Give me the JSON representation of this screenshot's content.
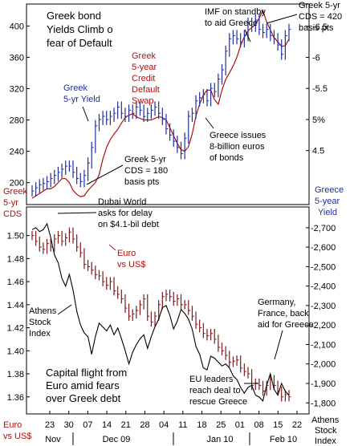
{
  "chart_data": [
    {
      "type": "line",
      "title": "Greek bond Yields Climb on fear of Default",
      "left_axis_label": [
        "Greek",
        "5-yr",
        "CDS"
      ],
      "right_axis_label": [
        "Greece",
        "5-year",
        "Yield"
      ],
      "left_ticks": [
        200,
        240,
        280,
        320,
        360,
        400
      ],
      "right_ticks": [
        "4.5",
        "5%",
        "5.5",
        "6",
        "6.5"
      ],
      "right_tick_values": [
        4.5,
        5,
        5.5,
        6,
        6.5
      ],
      "ylim_left": [
        175,
        425
      ],
      "ylim_right": [
        3.67,
        6.82
      ],
      "series": [
        {
          "name": "Greek 5-year Credit Default Swap",
          "color": "#b01010",
          "axis": "left",
          "values": [
            180,
            183,
            186,
            189,
            192,
            192,
            195,
            200,
            205,
            205,
            200,
            190,
            185,
            182,
            183,
            190,
            195,
            200,
            210,
            230,
            245,
            255,
            262,
            268,
            276,
            283,
            286,
            288,
            284,
            282,
            280,
            280,
            280,
            282,
            284,
            283,
            280,
            270,
            260,
            250,
            242,
            240,
            246,
            262,
            285,
            300,
            312,
            318,
            318,
            306,
            300,
            318,
            332,
            340,
            349,
            360,
            375,
            386,
            394,
            398,
            402,
            410,
            420,
            405,
            395,
            385,
            380,
            374,
            375,
            383
          ]
        },
        {
          "name": "Greek 5-yr Yield",
          "color": "#1f2f9a",
          "axis": "right",
          "values": [
            3.85,
            3.9,
            3.95,
            3.97,
            4.0,
            4.05,
            4.1,
            4.15,
            4.2,
            4.25,
            4.25,
            4.15,
            4.05,
            4.0,
            4.1,
            4.3,
            4.55,
            4.9,
            5.0,
            5.05,
            5.0,
            5.05,
            5.1,
            5.2,
            5.1,
            5.05,
            5.15,
            5.1,
            5.2,
            5.15,
            5.05,
            5.1,
            5.15,
            5.2,
            5.1,
            5.0,
            4.85,
            4.75,
            4.65,
            4.55,
            4.45,
            4.7,
            5.05,
            5.1,
            5.3,
            5.35,
            5.4,
            5.3,
            5.5,
            5.45,
            5.65,
            5.8,
            6.1,
            6.3,
            6.35,
            6.3,
            6.25,
            6.35,
            6.55,
            6.5,
            6.6,
            6.45,
            6.4,
            6.45,
            6.35,
            6.3,
            6.2,
            6.05,
            6.35,
            6.45
          ]
        }
      ]
    },
    {
      "type": "line",
      "left_axis_label": [
        "Euro",
        "vs US$"
      ],
      "right_axis_label": [
        "Athens",
        "Stock",
        "Index"
      ],
      "left_ticks": [
        "1.36",
        "1.38",
        "1.40",
        "1.42",
        "1.44",
        "1.46",
        "1.48",
        "1.50"
      ],
      "left_tick_values": [
        1.36,
        1.38,
        1.4,
        1.42,
        1.44,
        1.46,
        1.48,
        1.5
      ],
      "right_ticks": [
        "-1,800",
        "-1,900",
        "-2,000",
        "-2,100",
        "-2,200",
        "-2,300",
        "-2,400",
        "-2,500",
        "-2,600",
        "-2,700"
      ],
      "right_tick_values": [
        1800,
        1900,
        2000,
        2100,
        2200,
        2300,
        2400,
        2500,
        2600,
        2700
      ],
      "ylim_left": [
        1.348,
        1.522
      ],
      "ylim_right": [
        1760,
        2790
      ],
      "series": [
        {
          "name": "Euro vs US$",
          "color": "#7a1a1a",
          "axis": "left",
          "values": [
            1.5,
            1.495,
            1.49,
            1.488,
            1.493,
            1.49,
            1.497,
            1.5,
            1.495,
            1.498,
            1.503,
            1.497,
            1.49,
            1.485,
            1.475,
            1.473,
            1.47,
            1.466,
            1.465,
            1.46,
            1.457,
            1.46,
            1.452,
            1.449,
            1.445,
            1.437,
            1.43,
            1.432,
            1.435,
            1.44,
            1.445,
            1.43,
            1.425,
            1.43,
            1.44,
            1.447,
            1.449,
            1.447,
            1.443,
            1.445,
            1.44,
            1.44,
            1.435,
            1.43,
            1.423,
            1.42,
            1.415,
            1.413,
            1.415,
            1.41,
            1.403,
            1.4,
            1.396,
            1.39,
            1.391,
            1.392,
            1.385,
            1.382,
            1.38,
            1.37,
            1.372,
            1.37,
            1.365,
            1.37,
            1.375,
            1.37,
            1.365,
            1.36,
            1.362,
            1.36
          ]
        },
        {
          "name": "Athens Stock Index",
          "color": "#000000",
          "axis": "right",
          "values": [
            2690,
            2700,
            2680,
            2690,
            2720,
            2650,
            2560,
            2520,
            2440,
            2400,
            2460,
            2380,
            2270,
            2200,
            2160,
            2140,
            2050,
            2140,
            2210,
            2190,
            2170,
            2200,
            2150,
            2185,
            2130,
            2070,
            2000,
            2060,
            2100,
            2130,
            2150,
            2080,
            2140,
            2190,
            2230,
            2290,
            2300,
            2250,
            2180,
            2220,
            2280,
            2260,
            2230,
            2180,
            2090,
            2050,
            1980,
            1970,
            2040,
            2030,
            2010,
            1990,
            2000,
            1980,
            1940,
            1920,
            1880,
            1850,
            1880,
            1890,
            1840,
            1830,
            1810,
            1890,
            1950,
            1870,
            1840,
            1900,
            1860,
            1840
          ]
        }
      ]
    }
  ],
  "x_axis": {
    "day_ticks": [
      "23",
      "30",
      "07",
      "14",
      "21",
      "28",
      "04",
      "11",
      "18",
      "25",
      "01",
      "08",
      "15",
      "22"
    ],
    "months": [
      "Nov",
      "Dec 09",
      "Jan 10",
      "Feb 10"
    ]
  },
  "annotations": {
    "imf": [
      "IMF on standby",
      "to aid Greece"
    ],
    "cds_peak": [
      "Greek 5-yr",
      "CDS = 420",
      "basis pts"
    ],
    "cds_label": [
      "Greek",
      "5-year",
      "Credit",
      "Default",
      "Swap"
    ],
    "yield_label": [
      "Greek",
      "5-yr Yield"
    ],
    "bonds": [
      "Greece issues",
      "8-billion euros",
      "of bonds"
    ],
    "cds_180": [
      "Greek 5-yr",
      "CDS = 180",
      "basis pts"
    ],
    "dubai": [
      "Dubai World",
      "asks for delay",
      "on $4.1-bil debt"
    ],
    "euro_label": [
      "Euro",
      "vs US$"
    ],
    "athens_label": [
      "Athens",
      "Stock",
      "Index"
    ],
    "germany": [
      "Germany,",
      "France, back",
      "aid for Greece"
    ],
    "capital": [
      "Capital flight from",
      "Euro amid fears",
      "over Greek debt"
    ],
    "eu": [
      "EU leaders",
      "reach deal to",
      "rescue Greece"
    ]
  },
  "colors": {
    "cds": "#b01010",
    "yield": "#1f2f9a",
    "euro": "#7a1a1a",
    "athens": "#000000"
  }
}
